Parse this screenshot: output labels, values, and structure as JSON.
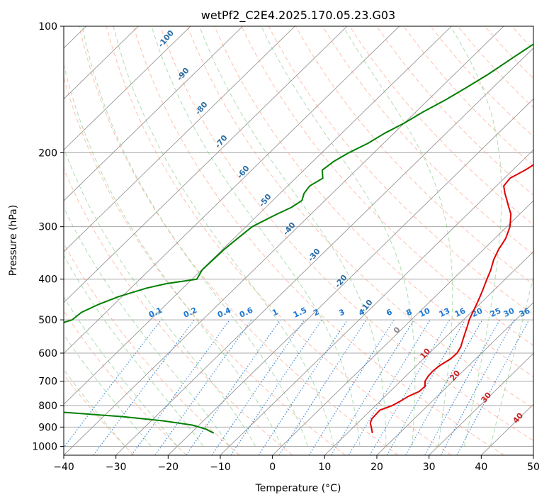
{
  "chart_data": {
    "type": "skew-t",
    "title": "wetPf2_C2E4.2025.170.05.23.G03",
    "xlabel": "Temperature (°C)",
    "ylabel": "Pressure (hPa)",
    "xlim": [
      -40,
      50
    ],
    "ylim_hPa": [
      1050,
      100
    ],
    "y_scale": "log",
    "grid": true,
    "x_ticks": [
      "−40",
      "−30",
      "−20",
      "−10",
      "0",
      "10",
      "20",
      "30",
      "40",
      "50"
    ],
    "y_ticks": [
      "100",
      "200",
      "300",
      "400",
      "500",
      "600",
      "700",
      "800",
      "900",
      "1000"
    ],
    "series": [
      {
        "color": "#e00000",
        "points": [
          [
            100,
            -6.2
          ],
          [
            105,
            -3.9
          ],
          [
            110,
            -2.3
          ],
          [
            115,
            -1.1
          ],
          [
            120,
            -0.9
          ],
          [
            130,
            -2.0
          ],
          [
            140,
            -3.3
          ],
          [
            150,
            -4.0
          ],
          [
            160,
            -4.3
          ],
          [
            170,
            -4.8
          ],
          [
            180,
            -5.2
          ],
          [
            190,
            -5.6
          ],
          [
            200,
            -6.2
          ],
          [
            210,
            -6.7
          ],
          [
            220,
            -7.6
          ],
          [
            230,
            -8.9
          ],
          [
            240,
            -8.6
          ],
          [
            250,
            -6.9
          ],
          [
            260,
            -5.1
          ],
          [
            270,
            -3.4
          ],
          [
            280,
            -1.7
          ],
          [
            300,
            0.6
          ],
          [
            320,
            2.1
          ],
          [
            340,
            2.9
          ],
          [
            360,
            4.0
          ],
          [
            380,
            5.4
          ],
          [
            400,
            6.5
          ],
          [
            420,
            7.6
          ],
          [
            440,
            8.6
          ],
          [
            460,
            9.5
          ],
          [
            480,
            10.3
          ],
          [
            500,
            11.1
          ],
          [
            520,
            12.1
          ],
          [
            540,
            13.0
          ],
          [
            560,
            13.9
          ],
          [
            580,
            14.8
          ],
          [
            600,
            15.3
          ],
          [
            620,
            15.2
          ],
          [
            640,
            14.5
          ],
          [
            660,
            14.2
          ],
          [
            680,
            14.3
          ],
          [
            700,
            14.7
          ],
          [
            720,
            15.7
          ],
          [
            740,
            15.6
          ],
          [
            760,
            14.5
          ],
          [
            780,
            13.9
          ],
          [
            800,
            13.2
          ],
          [
            820,
            11.7
          ],
          [
            840,
            11.8
          ],
          [
            860,
            11.9
          ],
          [
            880,
            12.4
          ],
          [
            900,
            13.4
          ],
          [
            930,
            14.8
          ]
        ]
      },
      {
        "color": "#007f00",
        "points": [
          [
            100,
            -29.0
          ],
          [
            105,
            -29.9
          ],
          [
            110,
            -30.7
          ],
          [
            115,
            -31.5
          ],
          [
            120,
            -32.2
          ],
          [
            130,
            -33.5
          ],
          [
            140,
            -35.1
          ],
          [
            150,
            -36.7
          ],
          [
            160,
            -38.6
          ],
          [
            170,
            -40.0
          ],
          [
            180,
            -41.8
          ],
          [
            190,
            -43.0
          ],
          [
            200,
            -44.8
          ],
          [
            210,
            -46.0
          ],
          [
            220,
            -46.5
          ],
          [
            230,
            -44.8
          ],
          [
            240,
            -45.8
          ],
          [
            250,
            -45.4
          ],
          [
            260,
            -44.4
          ],
          [
            270,
            -45.1
          ],
          [
            280,
            -46.5
          ],
          [
            300,
            -48.8
          ],
          [
            320,
            -49.3
          ],
          [
            340,
            -49.7
          ],
          [
            360,
            -49.8
          ],
          [
            380,
            -49.9
          ],
          [
            400,
            -49.1
          ],
          [
            410,
            -54.0
          ],
          [
            420,
            -56.9
          ],
          [
            440,
            -60.6
          ],
          [
            460,
            -63.0
          ],
          [
            480,
            -64.7
          ],
          [
            500,
            -65.0
          ],
          [
            520,
            -68.0
          ],
          [
            540,
            -70.8
          ],
          [
            560,
            -68.0
          ],
          [
            580,
            -66.9
          ],
          [
            600,
            -64.1
          ],
          [
            620,
            -66.3
          ],
          [
            640,
            -67.5
          ],
          [
            660,
            -66.3
          ],
          [
            680,
            -71.3
          ],
          [
            700,
            -70.0
          ],
          [
            720,
            -68.8
          ],
          [
            740,
            -71.4
          ],
          [
            760,
            -67.0
          ],
          [
            780,
            -67.2
          ],
          [
            790,
            -72.7
          ],
          [
            800,
            -90.1
          ],
          [
            810,
            -65.3
          ],
          [
            830,
            -48.5
          ],
          [
            850,
            -36.3
          ],
          [
            870,
            -27.6
          ],
          [
            890,
            -21.3
          ],
          [
            910,
            -17.9
          ],
          [
            930,
            -15.6
          ]
        ]
      }
    ],
    "dry_adiabat_labels": [
      "-100",
      "-90",
      "-80",
      "-70",
      "-60",
      "-50",
      "-40",
      "-30",
      "-20",
      "-10",
      "0",
      "10",
      "20",
      "30",
      "40"
    ],
    "mixing_ratio_labels": [
      "0.1",
      "0.2",
      "0.4",
      "0.6",
      "1",
      "1.5",
      "2",
      "3",
      "4",
      "6",
      "8",
      "10",
      "13",
      "16",
      "20",
      "25",
      "30",
      "36"
    ],
    "colors": {
      "temperature": "#e00000",
      "dewpoint": "#007f00",
      "dry_adiabat": "#ff8c69",
      "moist_adiabat": "#6fbf6f",
      "mixing_ratio": "#1e78d2",
      "isotherm": "#8a8a8a",
      "isobar": "#a8a8a8"
    }
  }
}
